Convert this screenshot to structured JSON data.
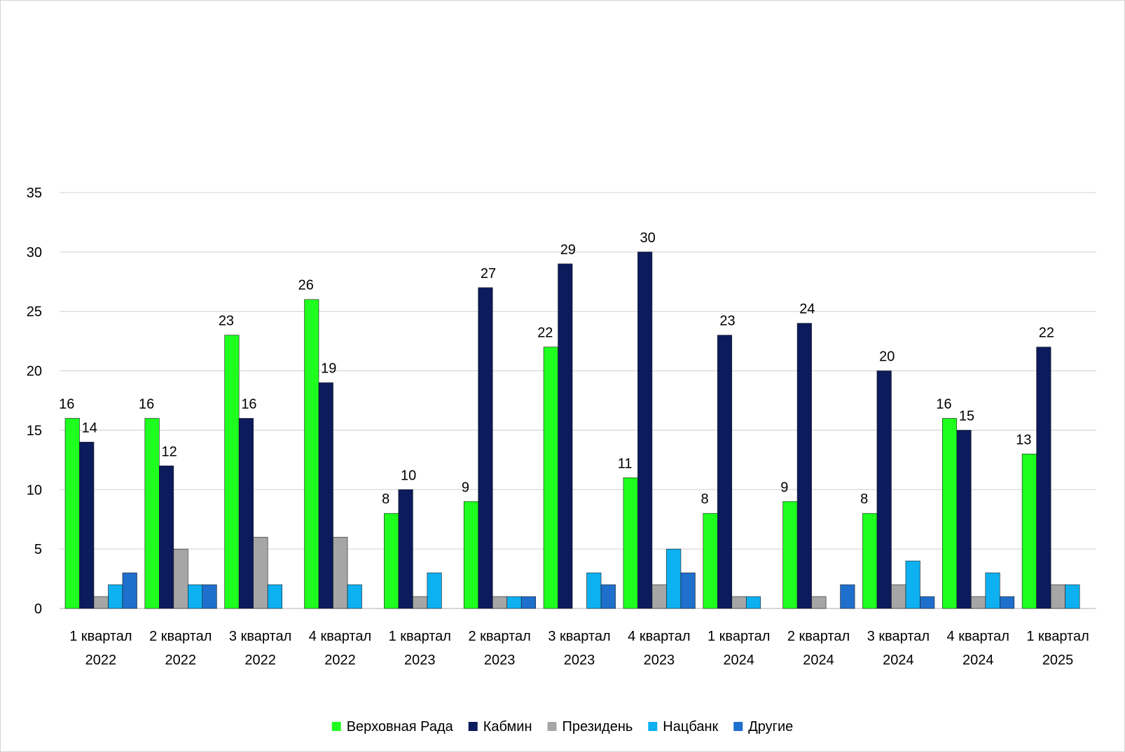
{
  "chart_data": {
    "type": "bar",
    "title": "",
    "xlabel": "",
    "ylabel": "",
    "ylim": [
      0,
      35
    ],
    "yticks": [
      0,
      5,
      10,
      15,
      20,
      25,
      30,
      35
    ],
    "grid": true,
    "legend_position": "bottom",
    "categories": [
      [
        "1 квартал",
        "2022"
      ],
      [
        "2 квартал",
        "2022"
      ],
      [
        "3 квартал",
        "2022"
      ],
      [
        "4 квартал",
        "2022"
      ],
      [
        "1 квартал",
        "2023"
      ],
      [
        "2 квартал",
        "2023"
      ],
      [
        "3 квартал",
        "2023"
      ],
      [
        "4 квартал",
        "2023"
      ],
      [
        "1 квартал",
        "2024"
      ],
      [
        "2 квартал",
        "2024"
      ],
      [
        "3 квартал",
        "2024"
      ],
      [
        "4 квартал",
        "2024"
      ],
      [
        "1 квартал",
        "2025"
      ]
    ],
    "series": [
      {
        "name": "Верховная Рада",
        "color": "#1fff1f",
        "labeled": true,
        "values": [
          16,
          16,
          23,
          26,
          8,
          9,
          22,
          11,
          8,
          9,
          8,
          16,
          13
        ]
      },
      {
        "name": "Кабмин",
        "color": "#0b1b5c",
        "labeled": true,
        "values": [
          14,
          12,
          16,
          19,
          10,
          27,
          29,
          30,
          23,
          24,
          20,
          15,
          22
        ]
      },
      {
        "name": "Президень",
        "color": "#a6a6a6",
        "labeled": false,
        "values": [
          1,
          5,
          6,
          6,
          1,
          1,
          0,
          2,
          1,
          1,
          2,
          1,
          2
        ]
      },
      {
        "name": "Нацбанк",
        "color": "#0db0f0",
        "labeled": false,
        "values": [
          2,
          2,
          2,
          2,
          3,
          1,
          3,
          5,
          1,
          0,
          4,
          3,
          2
        ]
      },
      {
        "name": "Другие",
        "color": "#1f6fcc",
        "labeled": false,
        "values": [
          3,
          2,
          0,
          0,
          0,
          1,
          2,
          3,
          0,
          2,
          1,
          1,
          0
        ]
      }
    ]
  }
}
